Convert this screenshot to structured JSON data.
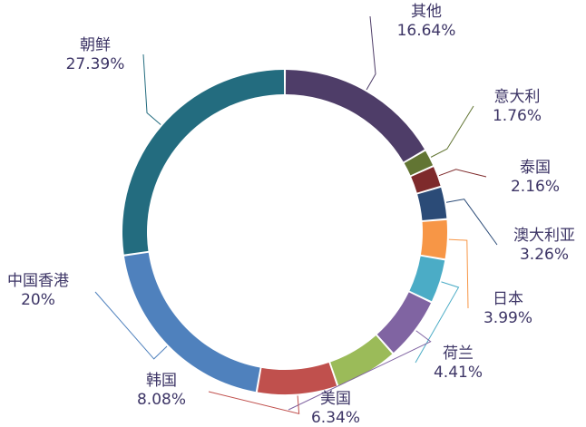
{
  "chart_data": {
    "type": "pie",
    "variant": "donut",
    "slices": [
      {
        "name": "其他",
        "label": "16.64%",
        "value": 16.64,
        "color": "#4e3d68"
      },
      {
        "name": "意大利",
        "label": "1.76%",
        "value": 1.76,
        "color": "#627533"
      },
      {
        "name": "泰国",
        "label": "2.16%",
        "value": 2.16,
        "color": "#7e2a2b"
      },
      {
        "name": "澳大利亚",
        "label": "3.26%",
        "value": 3.26,
        "color": "#2b4b77"
      },
      {
        "name": "日本",
        "label": "3.99%",
        "value": 3.99,
        "color": "#f79646"
      },
      {
        "name": "荷兰",
        "label": "4.41%",
        "value": 4.41,
        "color": "#4bacc6"
      },
      {
        "name": "美国",
        "label": "6.34%",
        "value": 6.34,
        "color": "#8064a2"
      },
      {
        "name": "",
        "label": "",
        "value": 6.34,
        "color": "#9bbb59"
      },
      {
        "name": "韩国",
        "label": "8.08%",
        "value": 8.08,
        "color": "#c0504d"
      },
      {
        "name": "中国香港",
        "label": "20%",
        "value": 20.0,
        "color": "#4f81bd"
      },
      {
        "name": "朝鲜",
        "label": "27.39%",
        "value": 27.39,
        "color": "#236c7f"
      }
    ]
  }
}
